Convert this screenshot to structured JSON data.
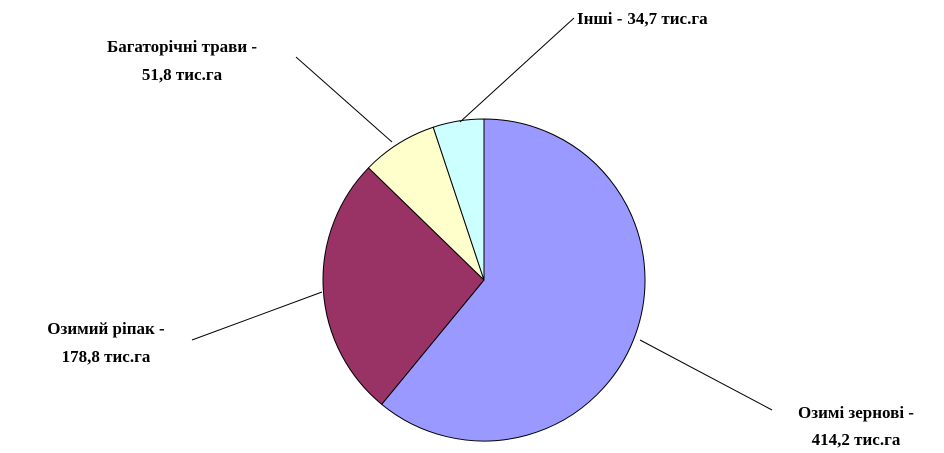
{
  "chart_data": {
    "type": "pie",
    "categories": [
      "Озимі зернові -",
      "Озимий ріпак -",
      "Багаторічні трави -",
      "Інші -"
    ],
    "values": [
      414.2,
      178.8,
      51.8,
      34.7
    ],
    "value_labels": [
      "414,2 тис.га",
      "178,8 тис.га",
      "51,8 тис.га",
      "34,7 тис.га"
    ],
    "colors": [
      "#9999ff",
      "#993366",
      "#ffffcc",
      "#ccffff"
    ]
  }
}
